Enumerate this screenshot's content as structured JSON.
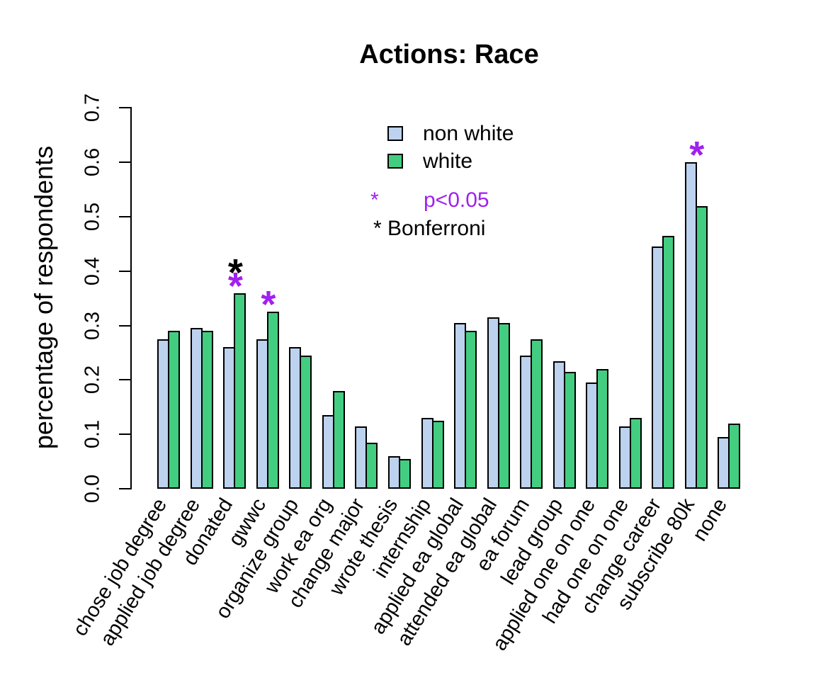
{
  "title": "Actions: Race",
  "y_axis_label": "percentage of respondents",
  "legend": {
    "series": [
      {
        "label": "non white",
        "color": "#BCD2EE"
      },
      {
        "label": "white",
        "color": "#43CD80"
      }
    ],
    "sig_symbol": "*",
    "sig_label": "p<0.05",
    "sig_color": "#A020F0",
    "bonferroni_label": "* Bonferroni",
    "bonferroni_color": "#000000"
  },
  "chart_data": {
    "type": "bar",
    "title": "Actions: Race",
    "xlabel": "",
    "ylabel": "percentage of respondents",
    "ylim": [
      0,
      0.7
    ],
    "ytick_labels": [
      "0.0",
      "0.1",
      "0.2",
      "0.3",
      "0.4",
      "0.5",
      "0.6",
      "0.7"
    ],
    "grid": false,
    "legend_position": "inside top-center",
    "categories": [
      "chose job degree",
      "applied job degree",
      "donated",
      "gwwc",
      "organize group",
      "work ea org",
      "change major",
      "wrote thesis",
      "internship",
      "applied ea global",
      "attended ea global",
      "ea forum",
      "lead group",
      "applied one on one",
      "had one on one",
      "change career",
      "subscribe 80k",
      "none"
    ],
    "series": [
      {
        "name": "non white",
        "color": "#BCD2EE",
        "values": [
          0.275,
          0.295,
          0.26,
          0.275,
          0.26,
          0.135,
          0.115,
          0.06,
          0.13,
          0.305,
          0.315,
          0.245,
          0.235,
          0.195,
          0.115,
          0.445,
          0.6,
          0.095
        ]
      },
      {
        "name": "white",
        "color": "#43CD80",
        "values": [
          0.29,
          0.29,
          0.36,
          0.325,
          0.245,
          0.18,
          0.085,
          0.055,
          0.125,
          0.29,
          0.305,
          0.275,
          0.215,
          0.22,
          0.13,
          0.465,
          0.52,
          0.12
        ]
      }
    ],
    "significance": [
      {
        "category": "donated",
        "markers": [
          "p<0.05",
          "Bonferroni"
        ]
      },
      {
        "category": "gwwc",
        "markers": [
          "p<0.05"
        ]
      },
      {
        "category": "subscribe 80k",
        "markers": [
          "p<0.05"
        ]
      }
    ],
    "sig_marker_symbol": "*",
    "sig_marker_color": "#A020F0",
    "bonferroni_marker_color": "#000000"
  }
}
